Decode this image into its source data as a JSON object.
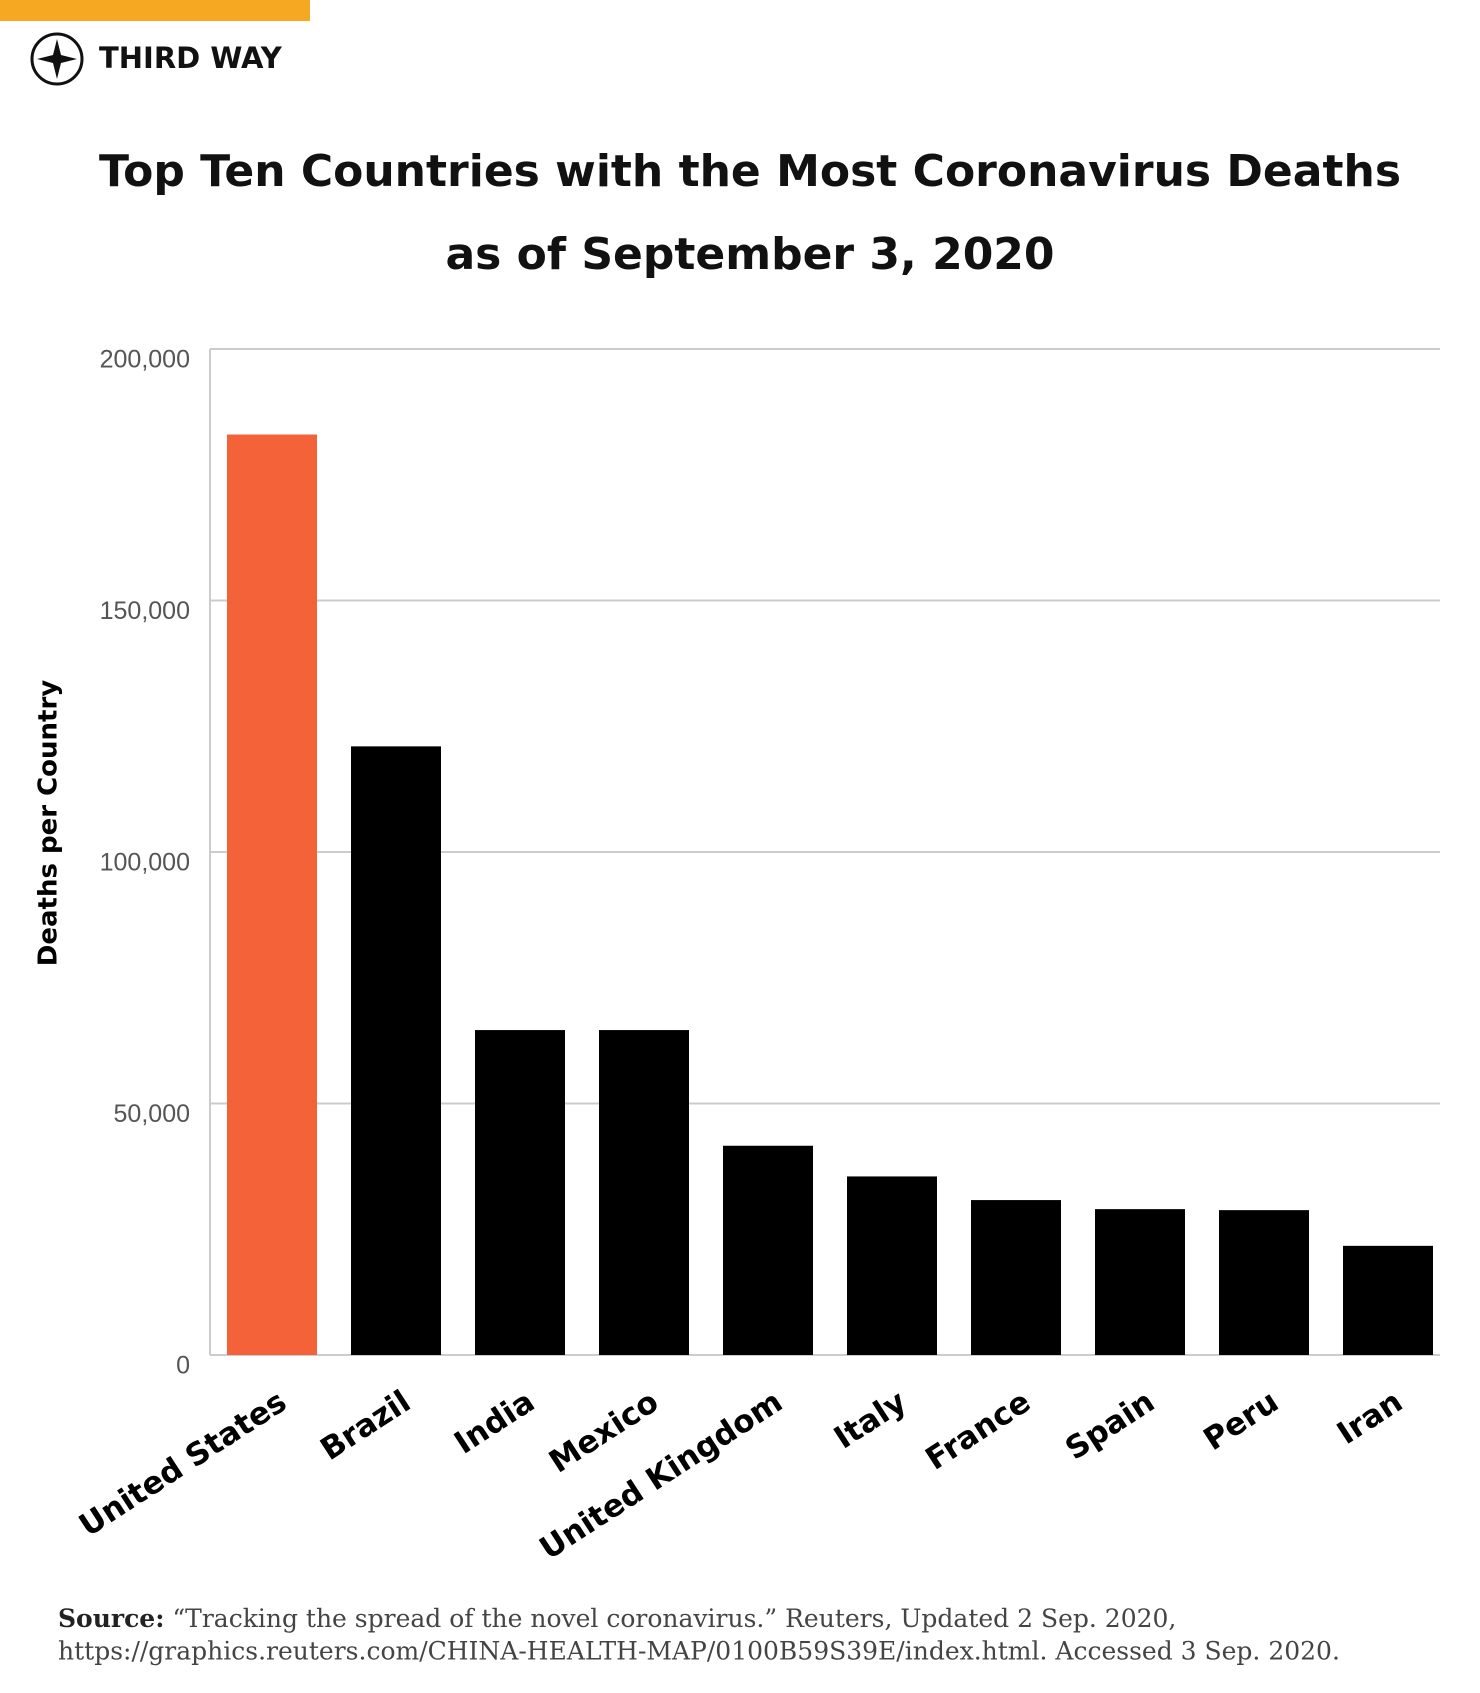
{
  "brand": "THIRD WAY",
  "chart_data": {
    "type": "bar",
    "title": [
      "Top Ten Countries with the Most Coronavirus Deaths",
      "as of September 3, 2020"
    ],
    "y_label": "Deaths per Country",
    "categories": [
      "United States",
      "Brazil",
      "India",
      "Mexico",
      "United Kingdom",
      "Italy",
      "France",
      "Spain",
      "Peru",
      "Iran"
    ],
    "values": [
      183000,
      121000,
      64600,
      64600,
      41600,
      35500,
      30800,
      29000,
      28800,
      21700
    ],
    "colors": [
      "#f4623a",
      "#000000",
      "#000000",
      "#000000",
      "#000000",
      "#000000",
      "#000000",
      "#000000",
      "#000000",
      "#000000"
    ],
    "ylim": [
      0,
      200000
    ],
    "yticks": [
      0,
      {
        "value": 50000,
        "label": "50,000"
      },
      {
        "value": 100000,
        "label": "100,000"
      },
      {
        "value": 150000,
        "label": "150,000"
      },
      {
        "value": 200000,
        "label": "200,000"
      }
    ],
    "grid": true
  },
  "source": {
    "label": "Source:",
    "line1": "“Tracking the spread of the novel coronavirus.” Reuters, Updated 2 Sep. 2020,",
    "line2": "https://graphics.reuters.com/CHINA-HEALTH-MAP/0100B59S39E/index.html. Accessed 3 Sep. 2020."
  }
}
